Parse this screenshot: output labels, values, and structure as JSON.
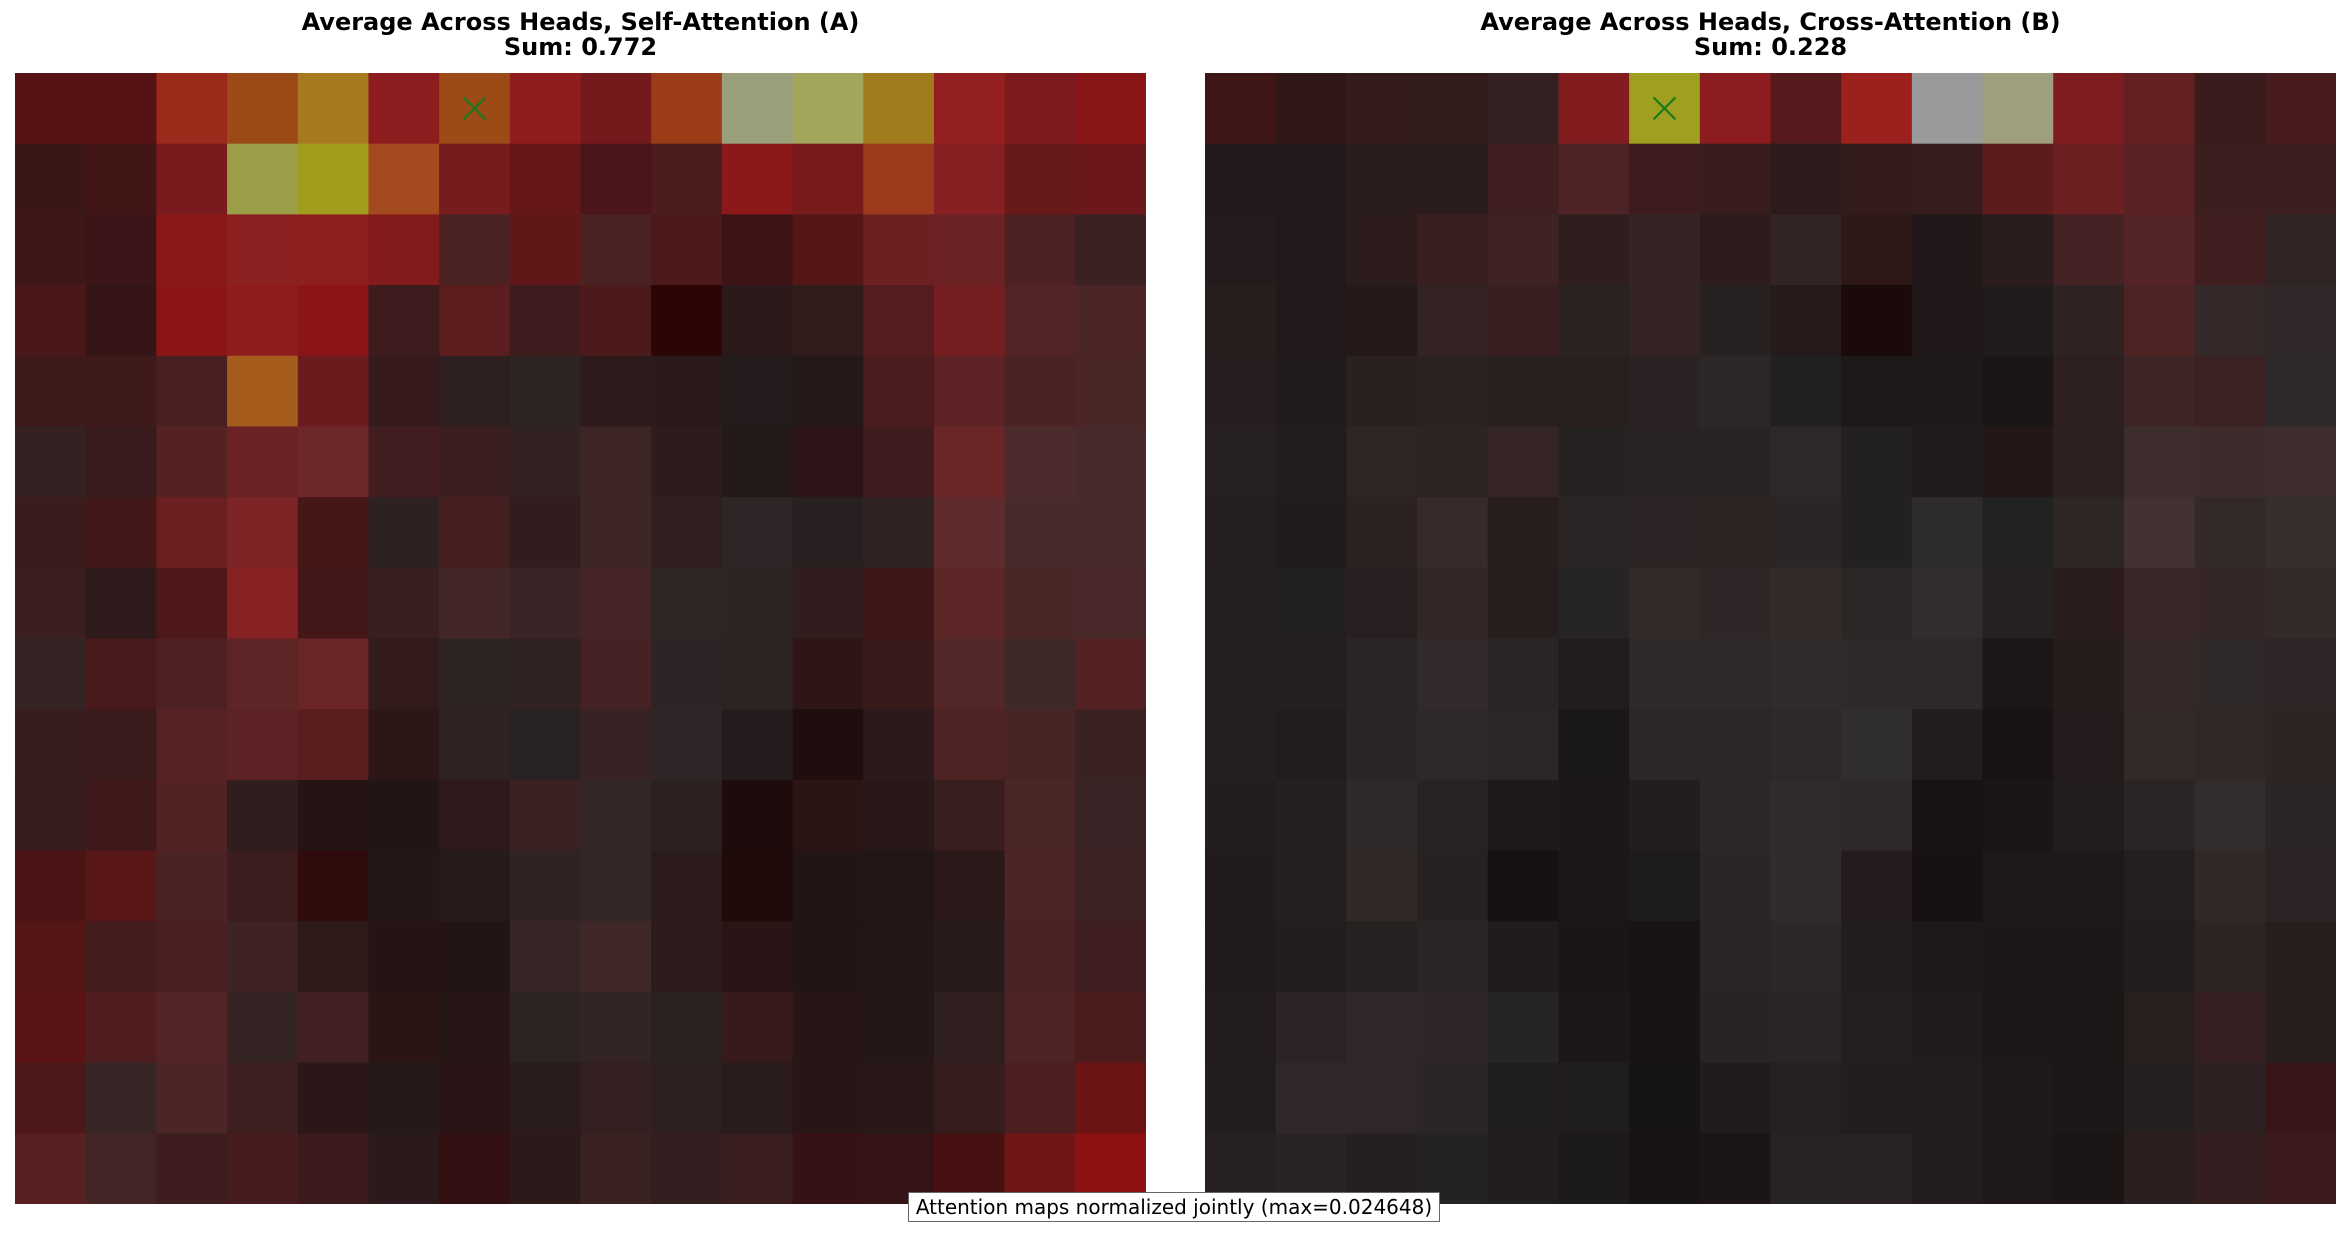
{
  "chart_data": [
    {
      "type": "heatmap",
      "title": "Average Across Heads, Self-Attention (A)",
      "subtitle": "Sum: 0.772",
      "marker": {
        "symbol": "x",
        "row": 0,
        "col": 6,
        "color": "#1a7a1a"
      },
      "values": [
        [
          "#571215",
          "#571215",
          "#9b2a1a",
          "#9b4a15",
          "#a87a20",
          "#8c1c1e",
          "#9c4a16",
          "#911c1d",
          "#751a1c",
          "#9b3c18",
          "#9ba07c",
          "#a3a55c",
          "#a17c1d",
          "#931f20",
          "#7c1a1d",
          "#8a1517"
        ],
        [
          "#3a1617",
          "#431616",
          "#791b1c",
          "#9d9f48",
          "#a09e1c",
          "#a34b1e",
          "#761c1f",
          "#671618",
          "#4a1619",
          "#4d1c1c",
          "#8d1819",
          "#771a1c",
          "#9c3a1b",
          "#881f22",
          "#681a1b",
          "#6c1719"
        ],
        [
          "#3e1818",
          "#3b1517",
          "#8b1818",
          "#8c1f20",
          "#8e1f1e",
          "#831b1b",
          "#4a2223",
          "#601718",
          "#4b2223",
          "#4d1a1b",
          "#3d1315",
          "#561617",
          "#6d1f21",
          "#6d2225",
          "#4d2122",
          "#3a2122"
        ],
        [
          "#4a1818",
          "#351516",
          "#8c1515",
          "#8f1c1c",
          "#8b1516",
          "#3d1c1d",
          "#5c1d1e",
          "#3e1c1d",
          "#4d1a1b",
          "#2e0505",
          "#2c1919",
          "#311b1b",
          "#561d1e",
          "#761f22",
          "#532425",
          "#4c2526"
        ],
        [
          "#3e191a",
          "#3f1a1a",
          "#4a1f20",
          "#a65c1c",
          "#6b1b1e",
          "#371b1c",
          "#2e1f20",
          "#2f2424",
          "#2d1a1a",
          "#2b1a1b",
          "#241b1c",
          "#241818",
          "#4c1b1d",
          "#5c2224",
          "#4c2324",
          "#4b2627"
        ],
        [
          "#342222",
          "#381b1c",
          "#552223",
          "#6c2224",
          "#6f2829",
          "#421d1f",
          "#3b1e1f",
          "#332223",
          "#3d2425",
          "#2e1b1c",
          "#241919",
          "#2d1416",
          "#3e1c1d",
          "#6a2627",
          "#4c2b2c",
          "#482a2b"
        ],
        [
          "#3b1c1c",
          "#421818",
          "#6c1f20",
          "#7d2426",
          "#471718",
          "#2e2122",
          "#451f20",
          "#311d1e",
          "#3e2526",
          "#311e1f",
          "#2d2526",
          "#282020",
          "#312223",
          "#5f2b2c",
          "#482a2b",
          "#472a2b"
        ],
        [
          "#3b1e1f",
          "#2e1a1a",
          "#4e1819",
          "#862223",
          "#441819",
          "#391f20",
          "#432728",
          "#3b2425",
          "#452526",
          "#302525",
          "#2d2424",
          "#331c1d",
          "#3d1718",
          "#5c2627",
          "#4a2627",
          "#482828"
        ],
        [
          "#352424",
          "#481a1b",
          "#4f2021",
          "#5d2526",
          "#6c2526",
          "#331a1b",
          "#2e2424",
          "#312222",
          "#452223",
          "#2e2425",
          "#2c2323",
          "#2f1515",
          "#381a1b",
          "#532627",
          "#3e2828",
          "#552224"
        ],
        [
          "#381d1e",
          "#3a1b1c",
          "#562223",
          "#5d2223",
          "#5b1e1f",
          "#2c1616",
          "#2e2222",
          "#292222",
          "#372224",
          "#2e2526",
          "#261c1d",
          "#200e0e",
          "#2b1a1b",
          "#4d2324",
          "#482525",
          "#3b2222"
        ],
        [
          "#361c1d",
          "#401a1b",
          "#532222",
          "#301e1e",
          "#261313",
          "#231515",
          "#2e1a1b",
          "#3b2122",
          "#332626",
          "#2c2021",
          "#1e0c0c",
          "#2a1414",
          "#281819",
          "#391e1f",
          "#4b2627",
          "#3a2324"
        ],
        [
          "#4a1414",
          "#591718",
          "#4c2324",
          "#3c1d1e",
          "#2f0b0b",
          "#241717",
          "#271a1a",
          "#302323",
          "#332727",
          "#2b1b1c",
          "#1f0a0a",
          "#231515",
          "#231616",
          "#2b1818",
          "#4c2425",
          "#3d2223"
        ],
        [
          "#541516",
          "#431d1e",
          "#4a1f20",
          "#3f2224",
          "#2f1a1a",
          "#261313",
          "#241515",
          "#352526",
          "#402728",
          "#2d1c1c",
          "#2a1415",
          "#231516",
          "#221616",
          "#281b1b",
          "#4a2223",
          "#3e1e20"
        ],
        [
          "#5b1416",
          "#4f1d1e",
          "#532526",
          "#352424",
          "#421f20",
          "#2b1414",
          "#271616",
          "#2c2323",
          "#332425",
          "#2a2121",
          "#371a1c",
          "#281617",
          "#231717",
          "#2f1f1f",
          "#4f2323",
          "#4c1b1c"
        ],
        [
          "#4d1819",
          "#382626",
          "#4c2526",
          "#3e1f20",
          "#2b1717",
          "#251919",
          "#2a1314",
          "#2a1c1c",
          "#352021",
          "#2e1f20",
          "#2a1b1c",
          "#281616",
          "#281818",
          "#361c1d",
          "#4d1e20",
          "#6b1415"
        ],
        [
          "#582021",
          "#442526",
          "#3e1d1e",
          "#471c1e",
          "#3a1a1b",
          "#2b1a1b",
          "#320f10",
          "#2c1a1a",
          "#3a2223",
          "#331f1f",
          "#3a1e1f",
          "#371214",
          "#341416",
          "#471011",
          "#701616",
          "#8f1212"
        ]
      ]
    },
    {
      "type": "heatmap",
      "title": "Average Across Heads, Cross-Attention (B)",
      "subtitle": "Sum: 0.228",
      "marker": {
        "symbol": "x",
        "row": 0,
        "col": 6,
        "color": "#1a7a1a"
      },
      "values": [
        [
          "#3f1717",
          "#321717",
          "#341c1c",
          "#331c1c",
          "#332121",
          "#821c1e",
          "#a0a020",
          "#8c1c1f",
          "#561a1c",
          "#9c201c",
          "#9a9a9a",
          "#9f9f7d",
          "#7e1c1f",
          "#631f21",
          "#3b1c1d",
          "#4a1b1c"
        ],
        [
          "#221a1a",
          "#221a1a",
          "#2b1d1d",
          "#2a1c1c",
          "#3e1e1e",
          "#4e2325",
          "#3e1c1d",
          "#391c1d",
          "#2d1a1a",
          "#351c1c",
          "#371c1d",
          "#5c1c1e",
          "#6d2022",
          "#5a2224",
          "#3c1e1e",
          "#3b1f1f"
        ],
        [
          "#241c1c",
          "#221a1a",
          "#2c1c1c",
          "#381e1f",
          "#3f2222",
          "#2e1e1e",
          "#362425",
          "#2e1b1b",
          "#322424",
          "#2e1818",
          "#211919",
          "#2b1d1d",
          "#452223",
          "#542325",
          "#401d1e",
          "#302424"
        ],
        [
          "#271e1e",
          "#221a1a",
          "#241818",
          "#332324",
          "#391e1f",
          "#2b2222",
          "#342424",
          "#272121",
          "#261a1a",
          "#1a0a0a",
          "#201818",
          "#221b1b",
          "#2e2222",
          "#4e2324",
          "#342828",
          "#302828"
        ],
        [
          "#261e1e",
          "#221b1b",
          "#2a2020",
          "#2c2121",
          "#2a1f1f",
          "#2a1f1f",
          "#2b2323",
          "#2c2828",
          "#202020",
          "#1f1818",
          "#1f1a1a",
          "#1b1515",
          "#2e2020",
          "#3e2526",
          "#3b2324",
          "#2e2a2a"
        ],
        [
          "#262020",
          "#221c1c",
          "#2f2525",
          "#2d2323",
          "#352525",
          "#272222",
          "#292222",
          "#292323",
          "#2e2828",
          "#222020",
          "#201b1b",
          "#231717",
          "#2d2020",
          "#3d2d2d",
          "#3e2c2c",
          "#3e2d2d"
        ],
        [
          "#241e1e",
          "#221b1b",
          "#2c2222",
          "#362a2a",
          "#281d1d",
          "#2a2424",
          "#2c2424",
          "#2c2323",
          "#2b2626",
          "#222020",
          "#2e2b2b",
          "#232222",
          "#2e2525",
          "#413131",
          "#342929",
          "#362d2d"
        ],
        [
          "#252020",
          "#221f1f",
          "#282020",
          "#332626",
          "#261d1d",
          "#262424",
          "#332a2a",
          "#2f2727",
          "#332a2a",
          "#2b2727",
          "#312d2d",
          "#252121",
          "#2a1c1c",
          "#3a2727",
          "#352727",
          "#352a2a"
        ],
        [
          "#252020",
          "#231f1f",
          "#2b2626",
          "#322a2a",
          "#292525",
          "#221c1c",
          "#2f2a2a",
          "#2e2828",
          "#302a2a",
          "#2e2a2a",
          "#2e2929",
          "#1b1717",
          "#251c1c",
          "#352828",
          "#302929",
          "#2e2626"
        ],
        [
          "#241f1f",
          "#221d1d",
          "#2c2525",
          "#2f2828",
          "#2d2626",
          "#1a1717",
          "#2d2828",
          "#2c2626",
          "#2f2828",
          "#302d2d",
          "#221d1d",
          "#181313",
          "#241c1c",
          "#332929",
          "#302727",
          "#2d2424"
        ],
        [
          "#231e1e",
          "#251f1f",
          "#2f2929",
          "#282323",
          "#1e1919",
          "#1d1818",
          "#221e1e",
          "#2c2828",
          "#302b2b",
          "#2e2828",
          "#191212",
          "#1c1515",
          "#221c1c",
          "#2b2424",
          "#332c2c",
          "#2b2424"
        ],
        [
          "#221b1b",
          "#261f1f",
          "#312828",
          "#272222",
          "#161111",
          "#1c1818",
          "#1e1b1b",
          "#2a2626",
          "#312b2b",
          "#241c1c",
          "#181111",
          "#1e1818",
          "#1e1818",
          "#241e1e",
          "#332828",
          "#2c2424"
        ],
        [
          "#211b1b",
          "#231e1e",
          "#272020",
          "#2a2424",
          "#201c1c",
          "#1b1616",
          "#181414",
          "#2a2626",
          "#2d2828",
          "#231e1e",
          "#1e1919",
          "#1c1818",
          "#1c1818",
          "#221d1d",
          "#2d2424",
          "#291e1e"
        ],
        [
          "#221c1c",
          "#2c2424",
          "#302828",
          "#2f2727",
          "#272424",
          "#1c1818",
          "#181414",
          "#282424",
          "#2a2525",
          "#231f1f",
          "#201c1c",
          "#1c1818",
          "#1b1717",
          "#281f1f",
          "#351f20",
          "#291e1e"
        ],
        [
          "#231e1e",
          "#302828",
          "#302828",
          "#2a2626",
          "#1f1d1d",
          "#201d1d",
          "#171414",
          "#201c1c",
          "#252121",
          "#221e1e",
          "#221e1e",
          "#1e1a1a",
          "#1c1818",
          "#261f1f",
          "#2e2121",
          "#3a1517"
        ],
        [
          "#272121",
          "#292424",
          "#252020",
          "#252222",
          "#231e1e",
          "#1d1a1a",
          "#181414",
          "#1c1515",
          "#272323",
          "#282222",
          "#221c1c",
          "#1e1818",
          "#1b1515",
          "#2a1e1e",
          "#331d1e",
          "#3c1a1b"
        ]
      ]
    }
  ],
  "footnote": "Attention maps normalized jointly (max=0.024648)"
}
